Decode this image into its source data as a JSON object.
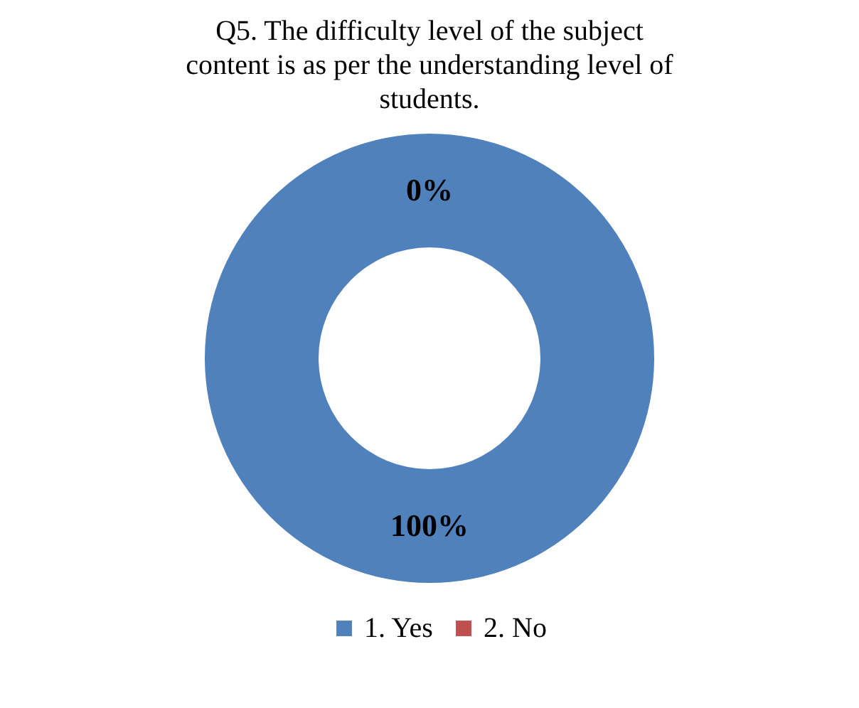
{
  "chart_data": {
    "type": "donut",
    "title": "Q5. The difficulty level of the subject content is as per the understanding level of students.",
    "categories": [
      "1. Yes",
      "2. No"
    ],
    "values": [
      100,
      0
    ],
    "colors": [
      "#4f81bd",
      "#c0504d"
    ],
    "value_labels": [
      "100%",
      "0%"
    ],
    "legend": "bottom"
  }
}
